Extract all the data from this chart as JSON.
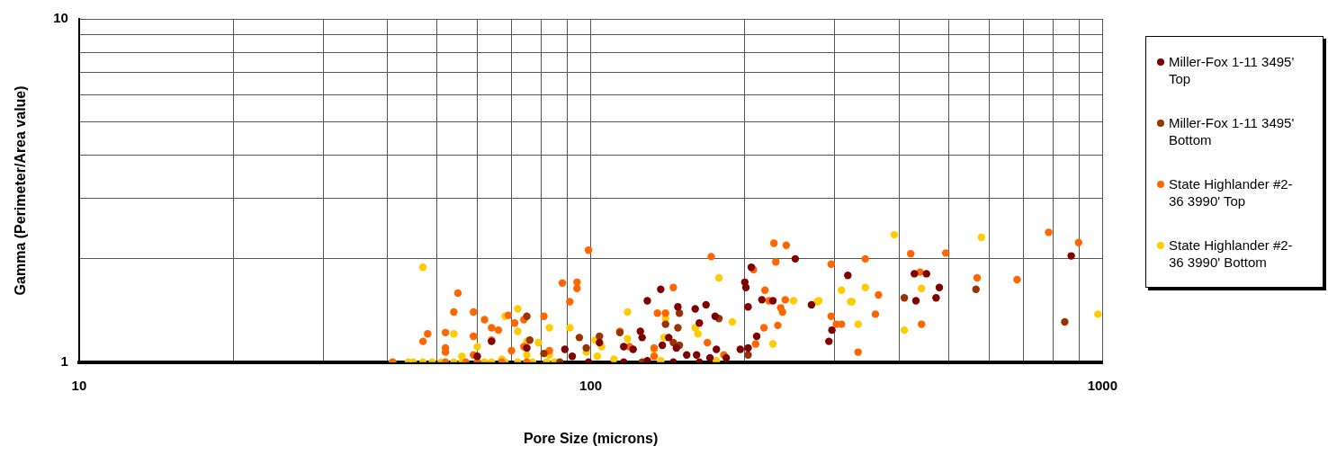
{
  "chart_data": {
    "type": "scatter",
    "xlabel": "Pore Size (microns)",
    "ylabel": "Gamma (Perimeter/Area value)",
    "log": "xy",
    "grid": true,
    "legend": "right",
    "marker": "circle",
    "xlim": [
      10,
      1000
    ],
    "ylim": [
      1,
      10
    ],
    "xticks": [
      10,
      {
        "value": 20,
        "label": null
      },
      {
        "value": 30,
        "label": null
      },
      {
        "value": 40,
        "label": null
      },
      {
        "value": 50,
        "label": null
      },
      {
        "value": 60,
        "label": null
      },
      {
        "value": 70,
        "label": null
      },
      {
        "value": 80,
        "label": null
      },
      {
        "value": 90,
        "label": null
      },
      100,
      {
        "value": 200,
        "label": null
      },
      {
        "value": 300,
        "label": null
      },
      {
        "value": 400,
        "label": null
      },
      {
        "value": 500,
        "label": null
      },
      {
        "value": 600,
        "label": null
      },
      {
        "value": 700,
        "label": null
      },
      {
        "value": 800,
        "label": null
      },
      {
        "value": 900,
        "label": null
      },
      1000
    ],
    "yticks": [
      1,
      {
        "value": 2,
        "label": null
      },
      {
        "value": 3,
        "label": null
      },
      {
        "value": 4,
        "label": null
      },
      {
        "value": 5,
        "label": null
      },
      {
        "value": 6,
        "label": null
      },
      {
        "value": 7,
        "label": null
      },
      {
        "value": 8,
        "label": null
      },
      {
        "value": 9,
        "label": null
      },
      10
    ],
    "series": [
      {
        "name": "Miller-Fox 1-11 3495' Top",
        "color": "#800000",
        "x": [
          869,
          429,
          453,
          480,
          432,
          473,
          206,
          200,
          201,
          203,
          216,
          227,
          251,
          270,
          318,
          296,
          292,
          211,
          203,
          196,
          137,
          129,
          148,
          160,
          168,
          163,
          175,
          125,
          126,
          116,
          121,
          138,
          147,
          154,
          161,
          171,
          176,
          145,
          163,
          129,
          116,
          142,
          184,
          75,
          89,
          92,
          104,
          60,
          99,
          64
        ],
        "values": [
          2.04,
          1.81,
          1.81,
          1.65,
          1.51,
          1.54,
          1.89,
          1.71,
          1.65,
          1.45,
          1.52,
          1.51,
          2.0,
          1.47,
          1.79,
          1.24,
          1.15,
          1.19,
          1.1,
          1.09,
          1.63,
          1.51,
          1.45,
          1.43,
          1.47,
          1.3,
          1.36,
          1.23,
          1.18,
          1.11,
          1.09,
          1.12,
          1.1,
          1.05,
          1.05,
          1.03,
          1.09,
          1,
          1,
          1.01,
          1,
          1.18,
          1.03,
          1.1,
          1.09,
          1.04,
          1.14,
          1.04,
          1,
          1.15
        ]
      },
      {
        "name": "Miller-Fox 1-11 3495' Bottom",
        "color": "#993300",
        "x": [
          410,
          566,
          844,
          114,
          149,
          140,
          148,
          145,
          149,
          178,
          203,
          126,
          75,
          76,
          81,
          95,
          98,
          104,
          87
        ],
        "values": [
          1.54,
          1.63,
          1.31,
          1.22,
          1.39,
          1.29,
          1.26,
          1.14,
          1.12,
          1.34,
          1.05,
          1,
          1.36,
          1.16,
          1.06,
          1.18,
          1.1,
          1.19,
          1
        ]
      },
      {
        "name": "State Highlander #2-36 3990' Top",
        "color": "#ff6600",
        "x": [
          99,
          55,
          54,
          59,
          62,
          64,
          66,
          69,
          71,
          74,
          81,
          88,
          94,
          94,
          91,
          48,
          47,
          52,
          52,
          52,
          64,
          59,
          59,
          70,
          74,
          83,
          114,
          172,
          145,
          135,
          140,
          228,
          241,
          230,
          208,
          219,
          223,
          240,
          235,
          237,
          218,
          232,
          210,
          295,
          295,
          302,
          309,
          119,
          133,
          169,
          182,
          133,
          344,
          422,
          494,
          785,
          898,
          440,
          569,
          681,
          365,
          360,
          443,
          333,
          41,
          52,
          57,
          60,
          67,
          75
        ],
        "values": [
          2.12,
          1.59,
          1.4,
          1.4,
          1.33,
          1.26,
          1.24,
          1.37,
          1.3,
          1.33,
          1.36,
          1.7,
          1.71,
          1.64,
          1.5,
          1.21,
          1.15,
          1.22,
          1.1,
          1.07,
          1.16,
          1.19,
          1.05,
          1.08,
          1.11,
          1.08,
          1.23,
          2.03,
          1.65,
          1.39,
          1.39,
          2.22,
          2.19,
          1.96,
          1.86,
          1.62,
          1.51,
          1.52,
          1.44,
          1.4,
          1.26,
          1.28,
          1.13,
          1.93,
          1.36,
          1.29,
          1.29,
          1.11,
          1.1,
          1.14,
          1.05,
          1.04,
          2.0,
          2.07,
          2.08,
          2.39,
          2.23,
          1.83,
          1.76,
          1.74,
          1.57,
          1.38,
          1.29,
          1.07,
          1,
          1,
          1,
          1,
          1,
          1
        ]
      },
      {
        "name": "State Highlander #2-36 3990' Bottom",
        "color": "#ffcc00",
        "x": [
          47,
          72,
          68,
          72,
          83,
          91,
          54,
          59,
          60,
          75,
          79,
          98,
          102,
          105,
          56,
          67,
          75,
          83,
          103,
          111,
          178,
          118,
          140,
          189,
          249,
          277,
          279,
          227,
          160,
          162,
          139,
          118,
          133,
          137,
          176,
          309,
          322,
          392,
          580,
          344,
          443,
          333,
          410,
          980,
          324,
          41,
          44,
          45,
          47,
          49,
          51,
          54,
          56,
          62,
          64,
          68,
          72,
          75,
          77,
          82,
          85
        ],
        "values": [
          1.89,
          1.43,
          1.36,
          1.23,
          1.26,
          1.26,
          1.21,
          1.19,
          1.11,
          1.15,
          1.14,
          1.07,
          1.16,
          1.11,
          1.04,
          1.02,
          1.05,
          1.05,
          1.04,
          1.02,
          1.76,
          1.4,
          1.34,
          1.31,
          1.51,
          1.5,
          1.51,
          1.13,
          1.26,
          1.21,
          1.18,
          1.17,
          1.09,
          1.01,
          1.01,
          1.62,
          1.5,
          2.35,
          2.31,
          1.65,
          1.64,
          1.29,
          1.24,
          1.38,
          1.5,
          1,
          1,
          1,
          1,
          1,
          1,
          1,
          1,
          1,
          1,
          1,
          1,
          1,
          1,
          1,
          1
        ]
      }
    ]
  }
}
